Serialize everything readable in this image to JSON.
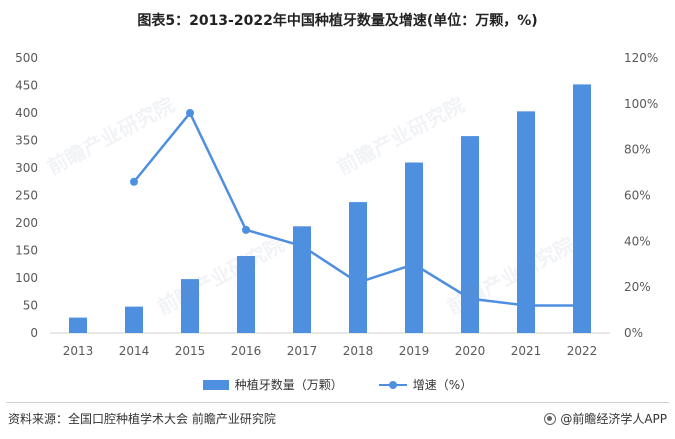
{
  "title": "图表5：2013-2022年中国种植牙数量及增速(单位：万颗，%)",
  "chart_data": {
    "type": "bar",
    "categories": [
      "2013",
      "2014",
      "2015",
      "2016",
      "2017",
      "2018",
      "2019",
      "2020",
      "2021",
      "2022"
    ],
    "series": [
      {
        "name": "种植牙数量（万颗）",
        "type": "bar",
        "axis": "left",
        "values": [
          28,
          48,
          98,
          140,
          194,
          238,
          310,
          358,
          403,
          452
        ]
      },
      {
        "name": "增速（%）",
        "type": "line",
        "axis": "right",
        "values": [
          null,
          66,
          96,
          45,
          38,
          22,
          30,
          15,
          12,
          12
        ]
      }
    ],
    "y_left": {
      "min": 0,
      "max": 500,
      "ticks": [
        0,
        50,
        100,
        150,
        200,
        250,
        300,
        350,
        400,
        450,
        500
      ]
    },
    "y_right": {
      "min": 0,
      "max": 120,
      "ticks": [
        "0%",
        "20%",
        "40%",
        "60%",
        "80%",
        "100%",
        "120%"
      ]
    },
    "grid": false,
    "legend_position": "bottom",
    "colors": {
      "bar": "#4f8fe0",
      "line": "#4f8fe0"
    }
  },
  "source": "资料来源：全国口腔种植学术大会 前瞻产业研究院",
  "brand": "@前瞻经济学人APP",
  "watermark": "前瞻产业研究院"
}
